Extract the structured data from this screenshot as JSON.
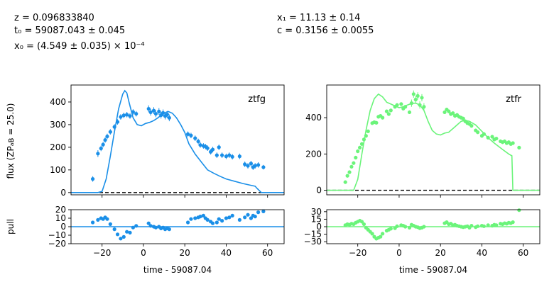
{
  "annotations": {
    "z": "z = 0.096833840",
    "t0": "t₀ = 59087.043 ± 0.045",
    "x0": "x₀ = (4.549 ± 0.035) × 10⁻⁴",
    "x1": "x₁ = 11.13 ± 0.14",
    "c": "c = 0.3156 ± 0.0055"
  },
  "labels": {
    "flux_ylabel": "flux (ZPₐʙ = 25.0)",
    "pull_ylabel": "pull",
    "xlabel": "time - 59087.04"
  },
  "chart_data": [
    {
      "type": "scatter",
      "name": "ztfg",
      "panel": "flux",
      "label": "ztfg",
      "color": "#1a8fe8",
      "xlim": [
        -35,
        68
      ],
      "ylim": [
        -10,
        475
      ],
      "xticks": [
        -20,
        0,
        20,
        40,
        60
      ],
      "yticks": [
        0,
        100,
        200,
        300,
        400
      ],
      "zero_line": true,
      "points": [
        {
          "x": -24.5,
          "y": 60,
          "e": 12
        },
        {
          "x": -22,
          "y": 172,
          "e": 15
        },
        {
          "x": -20.5,
          "y": 195,
          "e": 12
        },
        {
          "x": -19.5,
          "y": 212,
          "e": 12
        },
        {
          "x": -18.5,
          "y": 232,
          "e": 12
        },
        {
          "x": -17.5,
          "y": 248,
          "e": 12
        },
        {
          "x": -16,
          "y": 268,
          "e": 12
        },
        {
          "x": -14,
          "y": 290,
          "e": 12
        },
        {
          "x": -12.5,
          "y": 312,
          "e": 12
        },
        {
          "x": -11,
          "y": 334,
          "e": 12
        },
        {
          "x": -9.5,
          "y": 341,
          "e": 12
        },
        {
          "x": -8,
          "y": 344,
          "e": 12
        },
        {
          "x": -6.5,
          "y": 338,
          "e": 12
        },
        {
          "x": -5,
          "y": 356,
          "e": 12
        },
        {
          "x": -3.5,
          "y": 348,
          "e": 12
        },
        {
          "x": 2.5,
          "y": 370,
          "e": 15
        },
        {
          "x": 3.5,
          "y": 355,
          "e": 15
        },
        {
          "x": 5,
          "y": 362,
          "e": 15
        },
        {
          "x": 6,
          "y": 348,
          "e": 15
        },
        {
          "x": 7.5,
          "y": 358,
          "e": 15
        },
        {
          "x": 8.5,
          "y": 342,
          "e": 15
        },
        {
          "x": 9.5,
          "y": 352,
          "e": 15
        },
        {
          "x": 10.5,
          "y": 338,
          "e": 15
        },
        {
          "x": 11.5,
          "y": 345,
          "e": 15
        },
        {
          "x": 12.5,
          "y": 330,
          "e": 15
        },
        {
          "x": 21.5,
          "y": 258,
          "e": 12
        },
        {
          "x": 23,
          "y": 252,
          "e": 12
        },
        {
          "x": 25,
          "y": 240,
          "e": 12
        },
        {
          "x": 26.5,
          "y": 226,
          "e": 12
        },
        {
          "x": 27.5,
          "y": 210,
          "e": 12
        },
        {
          "x": 29,
          "y": 206,
          "e": 12
        },
        {
          "x": 30,
          "y": 203,
          "e": 12
        },
        {
          "x": 31,
          "y": 196,
          "e": 12
        },
        {
          "x": 32.5,
          "y": 180,
          "e": 12
        },
        {
          "x": 33.5,
          "y": 190,
          "e": 12
        },
        {
          "x": 35.5,
          "y": 165,
          "e": 12
        },
        {
          "x": 36.5,
          "y": 200,
          "e": 12
        },
        {
          "x": 38,
          "y": 165,
          "e": 12
        },
        {
          "x": 40,
          "y": 160,
          "e": 12
        },
        {
          "x": 41.5,
          "y": 165,
          "e": 12
        },
        {
          "x": 43,
          "y": 158,
          "e": 12
        },
        {
          "x": 46.5,
          "y": 160,
          "e": 12
        },
        {
          "x": 49,
          "y": 125,
          "e": 12
        },
        {
          "x": 50.5,
          "y": 118,
          "e": 12
        },
        {
          "x": 52,
          "y": 128,
          "e": 12
        },
        {
          "x": 53,
          "y": 112,
          "e": 12
        },
        {
          "x": 54,
          "y": 118,
          "e": 12
        },
        {
          "x": 55.5,
          "y": 122,
          "e": 12
        },
        {
          "x": 58,
          "y": 112,
          "e": 10
        }
      ],
      "model": {
        "x": [
          -35,
          -22,
          -20,
          -18,
          -16,
          -14,
          -12,
          -10,
          -9,
          -8,
          -7,
          -5,
          -3,
          -1,
          1,
          3,
          5,
          7,
          9,
          11,
          12,
          14,
          16,
          18,
          20,
          22,
          25,
          28,
          31,
          34,
          37,
          40,
          44,
          48,
          52,
          54,
          55,
          57,
          68
        ],
        "y": [
          0,
          0,
          5,
          60,
          160,
          270,
          370,
          435,
          450,
          440,
          400,
          330,
          300,
          295,
          305,
          310,
          318,
          330,
          345,
          355,
          358,
          350,
          330,
          300,
          265,
          215,
          170,
          135,
          100,
          85,
          72,
          60,
          50,
          40,
          32,
          28,
          18,
          0,
          0
        ]
      }
    },
    {
      "type": "scatter",
      "name": "ztfr",
      "panel": "flux",
      "label": "ztfr",
      "color": "#6bf47a",
      "xlim": [
        -35,
        68
      ],
      "ylim": [
        -25,
        580
      ],
      "xticks": [
        -20,
        0,
        20,
        40,
        60
      ],
      "yticks": [
        0,
        200,
        400
      ],
      "zero_line": true,
      "points": [
        {
          "x": -26,
          "y": 45,
          "e": 10
        },
        {
          "x": -25,
          "y": 80,
          "e": 10
        },
        {
          "x": -24,
          "y": 100,
          "e": 10
        },
        {
          "x": -23,
          "y": 130,
          "e": 10
        },
        {
          "x": -22,
          "y": 150,
          "e": 10
        },
        {
          "x": -21,
          "y": 180,
          "e": 10
        },
        {
          "x": -20,
          "y": 215,
          "e": 10
        },
        {
          "x": -19,
          "y": 235,
          "e": 10
        },
        {
          "x": -18,
          "y": 255,
          "e": 10
        },
        {
          "x": -17,
          "y": 280,
          "e": 10
        },
        {
          "x": -16,
          "y": 300,
          "e": 10
        },
        {
          "x": -15,
          "y": 325,
          "e": 10
        },
        {
          "x": -13,
          "y": 370,
          "e": 10
        },
        {
          "x": -12,
          "y": 375,
          "e": 10
        },
        {
          "x": -11,
          "y": 372,
          "e": 10
        },
        {
          "x": -10,
          "y": 405,
          "e": 10
        },
        {
          "x": -9,
          "y": 410,
          "e": 10
        },
        {
          "x": -8,
          "y": 400,
          "e": 10
        },
        {
          "x": -6,
          "y": 435,
          "e": 10
        },
        {
          "x": -5,
          "y": 420,
          "e": 10
        },
        {
          "x": -4,
          "y": 440,
          "e": 10
        },
        {
          "x": -2,
          "y": 460,
          "e": 10
        },
        {
          "x": -1,
          "y": 470,
          "e": 10
        },
        {
          "x": 1,
          "y": 475,
          "e": 10
        },
        {
          "x": 2,
          "y": 450,
          "e": 10
        },
        {
          "x": 3,
          "y": 460,
          "e": 10
        },
        {
          "x": 5,
          "y": 430,
          "e": 10
        },
        {
          "x": 6,
          "y": 480,
          "e": 20
        },
        {
          "x": 7,
          "y": 530,
          "e": 20
        },
        {
          "x": 8,
          "y": 500,
          "e": 20
        },
        {
          "x": 9,
          "y": 520,
          "e": 20
        },
        {
          "x": 10,
          "y": 470,
          "e": 20
        },
        {
          "x": 11,
          "y": 510,
          "e": 20
        },
        {
          "x": 12,
          "y": 460,
          "e": 20
        },
        {
          "x": 22,
          "y": 430,
          "e": 10
        },
        {
          "x": 23,
          "y": 445,
          "e": 10
        },
        {
          "x": 24,
          "y": 435,
          "e": 10
        },
        {
          "x": 25,
          "y": 420,
          "e": 10
        },
        {
          "x": 26,
          "y": 425,
          "e": 10
        },
        {
          "x": 27,
          "y": 410,
          "e": 10
        },
        {
          "x": 28,
          "y": 415,
          "e": 10
        },
        {
          "x": 29,
          "y": 405,
          "e": 10
        },
        {
          "x": 30,
          "y": 400,
          "e": 10
        },
        {
          "x": 31,
          "y": 395,
          "e": 10
        },
        {
          "x": 32,
          "y": 380,
          "e": 10
        },
        {
          "x": 33,
          "y": 370,
          "e": 10
        },
        {
          "x": 34,
          "y": 365,
          "e": 10
        },
        {
          "x": 35,
          "y": 355,
          "e": 10
        },
        {
          "x": 37,
          "y": 330,
          "e": 10
        },
        {
          "x": 38,
          "y": 320,
          "e": 10
        },
        {
          "x": 40,
          "y": 300,
          "e": 10
        },
        {
          "x": 41,
          "y": 310,
          "e": 10
        },
        {
          "x": 43,
          "y": 290,
          "e": 10
        },
        {
          "x": 45,
          "y": 295,
          "e": 10
        },
        {
          "x": 46,
          "y": 280,
          "e": 10
        },
        {
          "x": 47,
          "y": 285,
          "e": 10
        },
        {
          "x": 49,
          "y": 270,
          "e": 10
        },
        {
          "x": 50,
          "y": 265,
          "e": 10
        },
        {
          "x": 51,
          "y": 270,
          "e": 10
        },
        {
          "x": 52,
          "y": 260,
          "e": 10
        },
        {
          "x": 53,
          "y": 265,
          "e": 10
        },
        {
          "x": 54,
          "y": 255,
          "e": 10
        },
        {
          "x": 55,
          "y": 260,
          "e": 10
        },
        {
          "x": 58,
          "y": 235,
          "e": 8
        }
      ],
      "model": {
        "x": [
          -35,
          -22,
          -20,
          -18,
          -16,
          -14,
          -12,
          -10,
          -8,
          -6,
          -4,
          -2,
          0,
          2,
          4,
          6,
          8,
          10,
          12,
          14,
          16,
          18,
          20,
          22,
          24,
          26,
          28,
          30,
          32,
          34,
          37,
          40,
          43,
          46,
          50,
          53,
          54.5,
          55,
          68
        ],
        "y": [
          0,
          0,
          60,
          200,
          330,
          440,
          505,
          530,
          515,
          485,
          475,
          465,
          455,
          460,
          470,
          478,
          480,
          470,
          440,
          380,
          330,
          310,
          305,
          315,
          320,
          340,
          360,
          380,
          385,
          380,
          360,
          325,
          290,
          260,
          225,
          200,
          190,
          0,
          0
        ]
      }
    },
    {
      "type": "scatter",
      "name": "ztfg-pull",
      "panel": "pull",
      "color": "#1a8fe8",
      "xlim": [
        -35,
        68
      ],
      "ylim": [
        -20,
        20
      ],
      "xticks": [
        -20,
        0,
        20,
        40,
        60
      ],
      "yticks": [
        -20,
        -10,
        0,
        10,
        20
      ],
      "points": [
        {
          "x": -24.5,
          "y": 5
        },
        {
          "x": -22,
          "y": 8
        },
        {
          "x": -20.5,
          "y": 10
        },
        {
          "x": -19.5,
          "y": 9
        },
        {
          "x": -18.5,
          "y": 11
        },
        {
          "x": -17.5,
          "y": 9
        },
        {
          "x": -16,
          "y": 3
        },
        {
          "x": -14,
          "y": -3
        },
        {
          "x": -12.5,
          "y": -9
        },
        {
          "x": -11,
          "y": -14
        },
        {
          "x": -9.5,
          "y": -12
        },
        {
          "x": -8,
          "y": -6
        },
        {
          "x": -6.5,
          "y": -7
        },
        {
          "x": -5,
          "y": -1
        },
        {
          "x": -3.5,
          "y": 1
        },
        {
          "x": 2.5,
          "y": 4
        },
        {
          "x": 3.5,
          "y": 1
        },
        {
          "x": 5,
          "y": 0
        },
        {
          "x": 6,
          "y": -1
        },
        {
          "x": 7.5,
          "y": 0
        },
        {
          "x": 8.5,
          "y": -2
        },
        {
          "x": 9.5,
          "y": -1
        },
        {
          "x": 10.5,
          "y": -3
        },
        {
          "x": 11.5,
          "y": -2
        },
        {
          "x": 12.5,
          "y": -3
        },
        {
          "x": 21.5,
          "y": 5
        },
        {
          "x": 23,
          "y": 9
        },
        {
          "x": 25,
          "y": 10
        },
        {
          "x": 26.5,
          "y": 11
        },
        {
          "x": 27.5,
          "y": 12
        },
        {
          "x": 29,
          "y": 13
        },
        {
          "x": 30,
          "y": 10
        },
        {
          "x": 31,
          "y": 8
        },
        {
          "x": 32.5,
          "y": 6
        },
        {
          "x": 33.5,
          "y": 4
        },
        {
          "x": 35.5,
          "y": 5
        },
        {
          "x": 36.5,
          "y": 9
        },
        {
          "x": 38,
          "y": 7
        },
        {
          "x": 40,
          "y": 10
        },
        {
          "x": 41.5,
          "y": 11
        },
        {
          "x": 43,
          "y": 13
        },
        {
          "x": 46.5,
          "y": 8
        },
        {
          "x": 49,
          "y": 11
        },
        {
          "x": 50.5,
          "y": 14
        },
        {
          "x": 52,
          "y": 10
        },
        {
          "x": 53,
          "y": 13
        },
        {
          "x": 54,
          "y": 12
        },
        {
          "x": 55.5,
          "y": 17
        },
        {
          "x": 58,
          "y": 18
        }
      ]
    },
    {
      "type": "scatter",
      "name": "ztfr-pull",
      "panel": "pull",
      "color": "#6bf47a",
      "xlim": [
        -35,
        68
      ],
      "ylim": [
        -34,
        34
      ],
      "xticks": [
        -20,
        0,
        20,
        40,
        60
      ],
      "yticks": [
        -30,
        -15,
        0,
        15,
        30
      ],
      "points": [
        {
          "x": -26,
          "y": 3
        },
        {
          "x": -25,
          "y": 5
        },
        {
          "x": -24,
          "y": 4
        },
        {
          "x": -23,
          "y": 6
        },
        {
          "x": -22,
          "y": 5
        },
        {
          "x": -21,
          "y": 8
        },
        {
          "x": -20,
          "y": 10
        },
        {
          "x": -19,
          "y": 12
        },
        {
          "x": -18,
          "y": 10
        },
        {
          "x": -17,
          "y": 5
        },
        {
          "x": -16,
          "y": -2
        },
        {
          "x": -15,
          "y": -6
        },
        {
          "x": -14,
          "y": -10
        },
        {
          "x": -13,
          "y": -14
        },
        {
          "x": -12,
          "y": -20
        },
        {
          "x": -11,
          "y": -24
        },
        {
          "x": -10,
          "y": -22
        },
        {
          "x": -9,
          "y": -20
        },
        {
          "x": -8,
          "y": -14
        },
        {
          "x": -6,
          "y": -8
        },
        {
          "x": -5,
          "y": -6
        },
        {
          "x": -4,
          "y": -4
        },
        {
          "x": -2,
          "y": -3
        },
        {
          "x": -1,
          "y": 1
        },
        {
          "x": 1,
          "y": 3
        },
        {
          "x": 2,
          "y": 2
        },
        {
          "x": 3,
          "y": 0
        },
        {
          "x": 5,
          "y": -2
        },
        {
          "x": 6,
          "y": 4
        },
        {
          "x": 7,
          "y": 2
        },
        {
          "x": 8,
          "y": 0
        },
        {
          "x": 9,
          "y": -1
        },
        {
          "x": 10,
          "y": -3
        },
        {
          "x": 11,
          "y": -2
        },
        {
          "x": 12,
          "y": 0
        },
        {
          "x": 22,
          "y": 7
        },
        {
          "x": 23,
          "y": 9
        },
        {
          "x": 24,
          "y": 5
        },
        {
          "x": 25,
          "y": 6
        },
        {
          "x": 26,
          "y": 3
        },
        {
          "x": 27,
          "y": 4
        },
        {
          "x": 28,
          "y": 2
        },
        {
          "x": 29,
          "y": 1
        },
        {
          "x": 30,
          "y": 0
        },
        {
          "x": 31,
          "y": -1
        },
        {
          "x": 32,
          "y": 0
        },
        {
          "x": 33,
          "y": 1
        },
        {
          "x": 34,
          "y": -2
        },
        {
          "x": 35,
          "y": 2
        },
        {
          "x": 37,
          "y": -1
        },
        {
          "x": 38,
          "y": 1
        },
        {
          "x": 40,
          "y": 2
        },
        {
          "x": 41,
          "y": 1
        },
        {
          "x": 43,
          "y": 3
        },
        {
          "x": 45,
          "y": 2
        },
        {
          "x": 46,
          "y": 4
        },
        {
          "x": 47,
          "y": 3
        },
        {
          "x": 49,
          "y": 6
        },
        {
          "x": 50,
          "y": 5
        },
        {
          "x": 51,
          "y": 7
        },
        {
          "x": 52,
          "y": 6
        },
        {
          "x": 53,
          "y": 8
        },
        {
          "x": 54,
          "y": 7
        },
        {
          "x": 55,
          "y": 9
        },
        {
          "x": 58,
          "y": 33
        }
      ]
    }
  ]
}
